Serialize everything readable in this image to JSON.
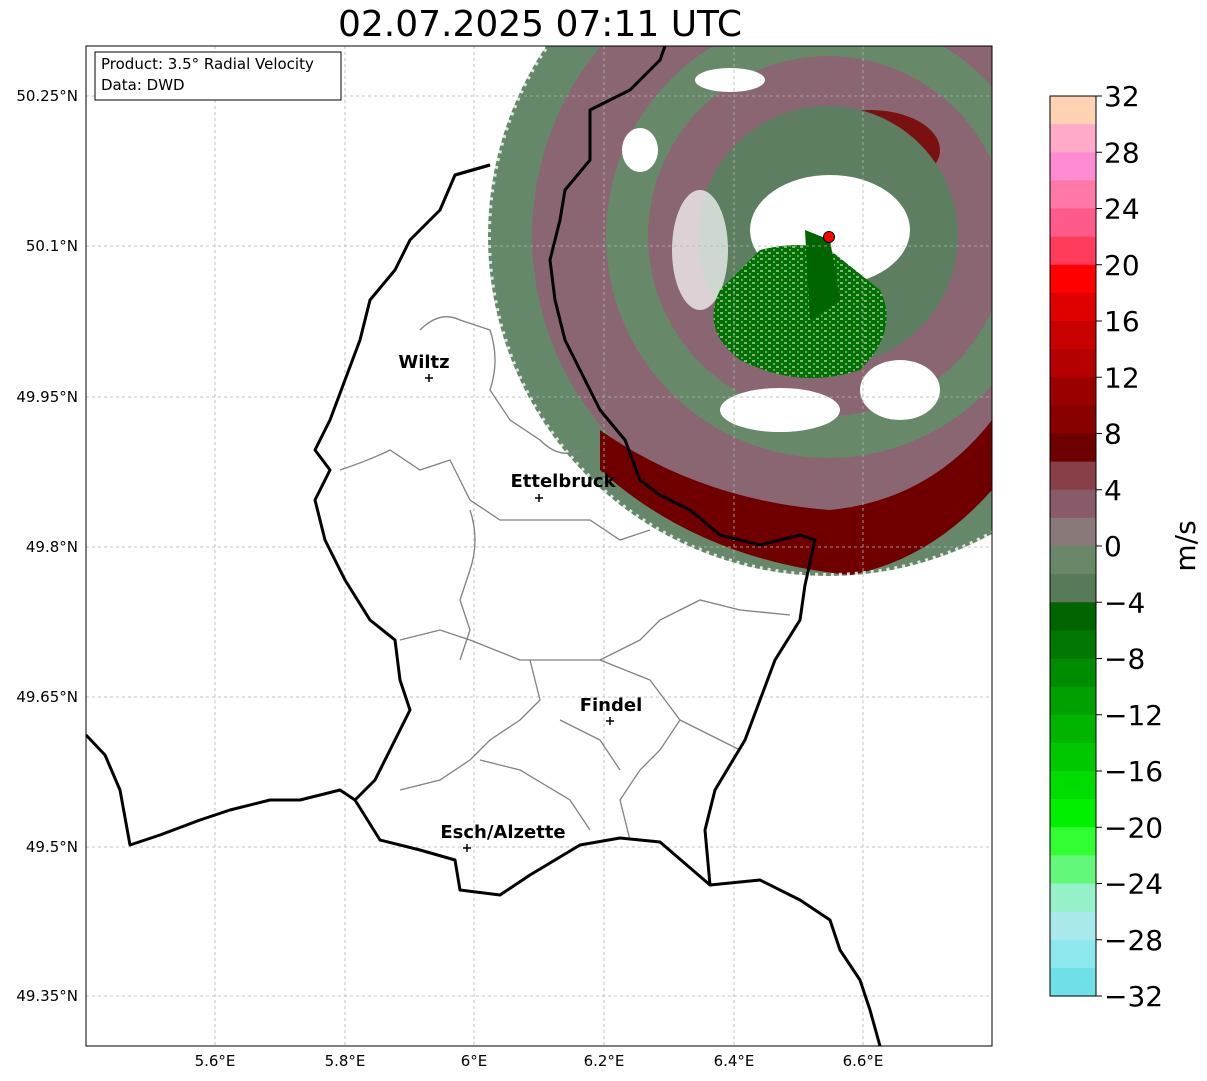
{
  "title": "02.07.2025 07:11 UTC",
  "info_box": {
    "product": "Product: 3.5° Radial Velocity",
    "data": "Data: DWD"
  },
  "lat_ticks": [
    "50.25°N",
    "50.1°N",
    "49.95°N",
    "49.8°N",
    "49.65°N",
    "49.5°N",
    "49.35°N"
  ],
  "lon_ticks": [
    "5.6°E",
    "5.8°E",
    "6°E",
    "6.2°E",
    "6.4°E",
    "6.6°E"
  ],
  "cities": [
    {
      "name": "Wiltz"
    },
    {
      "name": "Ettelbruck"
    },
    {
      "name": "Findel"
    },
    {
      "name": "Esch/Alzette"
    }
  ],
  "colorbar": {
    "label": "m/s",
    "ticks": [
      "32",
      "28",
      "24",
      "20",
      "16",
      "12",
      "8",
      "4",
      "0",
      "−4",
      "−8",
      "−12",
      "−16",
      "−20",
      "−24",
      "−28",
      "−32"
    ],
    "min": -32,
    "max": 32,
    "colors_top_to_bottom": [
      "#ffd2b4",
      "#ffaac8",
      "#ff8cd2",
      "#ff78a8",
      "#ff5a8a",
      "#ff3c5a",
      "#ff0000",
      "#e00000",
      "#c80000",
      "#b40000",
      "#9a0000",
      "#880000",
      "#6e0000",
      "#884048",
      "#885a6a",
      "#887878",
      "#688868",
      "#587a58",
      "#006400",
      "#007800",
      "#008c00",
      "#00a000",
      "#00b400",
      "#00c800",
      "#00dc00",
      "#00f000",
      "#32ff32",
      "#64f878",
      "#96f0c8",
      "#aae8ec",
      "#8ce8ec",
      "#70e0e8"
    ]
  },
  "radar_site_color": "#ff0000"
}
